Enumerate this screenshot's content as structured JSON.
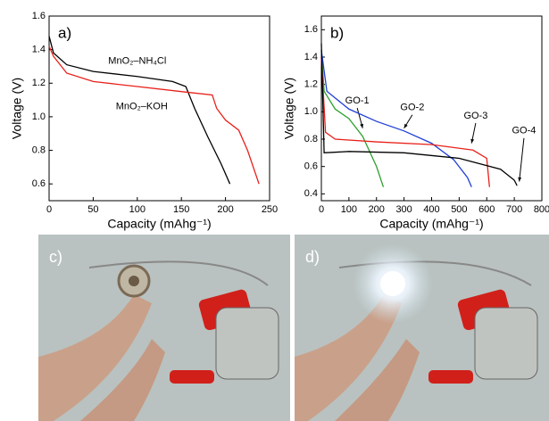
{
  "chart_data": [
    {
      "type": "line",
      "panel": "a)",
      "xlabel": "Capacity (mAhg⁻¹)",
      "ylabel": "Voltage (V)",
      "xlim": [
        0,
        250
      ],
      "xticks": [
        0,
        50,
        100,
        150,
        200,
        250
      ],
      "ylim": [
        0.5,
        1.6
      ],
      "yticks": [
        0.6,
        0.8,
        {
          "value": 1,
          "label": "1.0"
        },
        1.2,
        1.4,
        1.6
      ],
      "series": [
        {
          "name": "MnO₂–NH₄Cl",
          "color": "#000000",
          "x": [
            0,
            5,
            20,
            50,
            100,
            140,
            155,
            165,
            180,
            195,
            205
          ],
          "values": [
            1.48,
            1.38,
            1.31,
            1.27,
            1.24,
            1.21,
            1.18,
            1.05,
            0.88,
            0.72,
            0.6
          ]
        },
        {
          "name": "MnO₂–KOH",
          "color": "#e8201a",
          "x": [
            0,
            5,
            20,
            50,
            100,
            150,
            185,
            190,
            200,
            215,
            225,
            238
          ],
          "values": [
            1.42,
            1.36,
            1.26,
            1.21,
            1.18,
            1.15,
            1.13,
            1.05,
            0.98,
            0.92,
            0.8,
            0.6
          ]
        }
      ]
    },
    {
      "type": "line",
      "panel": "b)",
      "xlabel": "Capacity (mAhg⁻¹)",
      "ylabel": "Voltage (V)",
      "xlim": [
        0,
        800
      ],
      "xticks": [
        0,
        100,
        200,
        300,
        400,
        500,
        600,
        700,
        800
      ],
      "ylim": [
        0.35,
        1.7
      ],
      "yticks": [
        0.4,
        0.6,
        0.8,
        {
          "value": 1,
          "label": "1.0"
        },
        1.2,
        1.4,
        1.6
      ],
      "series": [
        {
          "name": "GO-1",
          "color": "#2ca02c",
          "x": [
            0,
            10,
            50,
            100,
            150,
            200,
            225
          ],
          "values": [
            1.45,
            1.15,
            1.02,
            0.95,
            0.82,
            0.6,
            0.45
          ]
        },
        {
          "name": "GO-2",
          "color": "#1f3fd6",
          "x": [
            0,
            20,
            100,
            200,
            300,
            400,
            480,
            530,
            545
          ],
          "values": [
            1.45,
            1.15,
            1.02,
            0.93,
            0.86,
            0.77,
            0.65,
            0.52,
            0.45
          ]
        },
        {
          "name": "GO-3",
          "color": "#e8201a",
          "x": [
            0,
            15,
            50,
            200,
            400,
            550,
            600,
            610
          ],
          "values": [
            1.4,
            0.85,
            0.8,
            0.78,
            0.76,
            0.72,
            0.66,
            0.45
          ]
        },
        {
          "name": "GO-4",
          "color": "#000000",
          "x": [
            0,
            10,
            100,
            300,
            500,
            650,
            700,
            710
          ],
          "values": [
            1.5,
            0.7,
            0.71,
            0.7,
            0.66,
            0.58,
            0.5,
            0.46
          ]
        }
      ]
    }
  ],
  "photos": [
    {
      "label": "c)"
    },
    {
      "label": "d)"
    }
  ]
}
